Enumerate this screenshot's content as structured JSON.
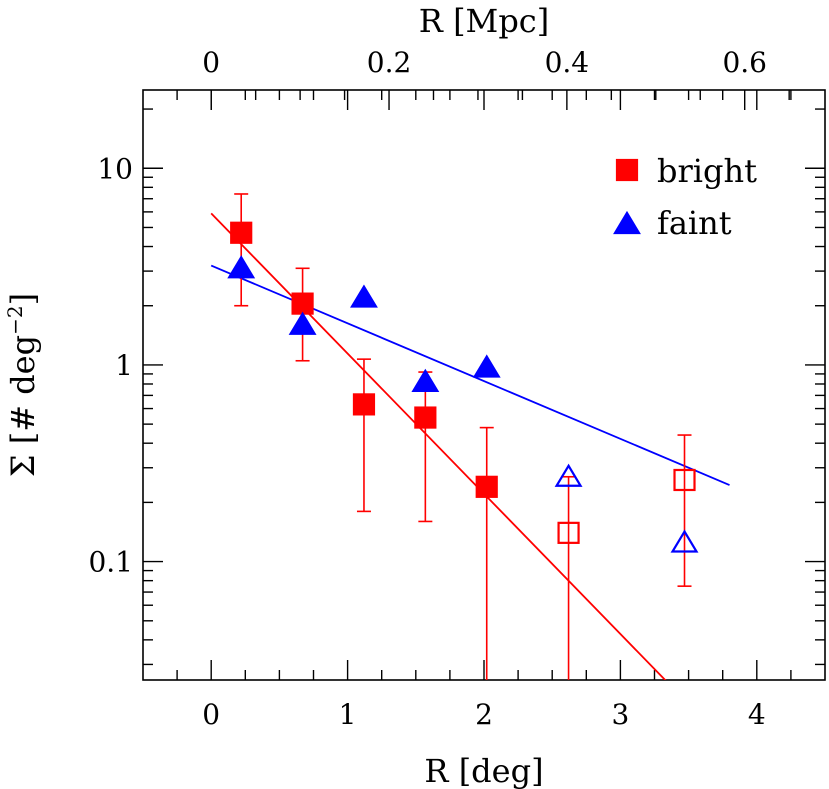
{
  "chart_data": {
    "type": "scatter",
    "xlabel": "R [deg]",
    "x2label": "R [Mpc]",
    "ylabel": "Σ [# deg",
    "ylabel_sup": "−2",
    "ylabel_close": "]",
    "xlim": [
      -0.5,
      4.5
    ],
    "ylim": [
      0.025,
      25
    ],
    "yscale": "log",
    "x2_scale_mpc_per_deg": 0.1534,
    "xticks": [
      0,
      1,
      2,
      3,
      4
    ],
    "xtick_labels": [
      "0",
      "1",
      "2",
      "3",
      "4"
    ],
    "x2ticks": [
      0,
      0.2,
      0.4,
      0.6
    ],
    "x2tick_labels": [
      "0",
      "0.2",
      "0.4",
      "0.6"
    ],
    "yticks": [
      0.1,
      1,
      10
    ],
    "ytick_labels": [
      "0.1",
      "1",
      "10"
    ],
    "legend": {
      "position": "top-right"
    },
    "series": [
      {
        "name": "bright",
        "marker": "square",
        "color": "#ff0000",
        "points": [
          {
            "x": 0.22,
            "y": 4.7,
            "ylo": 2.0,
            "yhi": 7.4,
            "filled": true
          },
          {
            "x": 0.67,
            "y": 2.05,
            "ylo": 1.05,
            "yhi": 3.1,
            "filled": true
          },
          {
            "x": 1.12,
            "y": 0.63,
            "ylo": 0.18,
            "yhi": 1.07,
            "filled": true
          },
          {
            "x": 1.57,
            "y": 0.54,
            "ylo": 0.16,
            "yhi": 0.92,
            "filled": true
          },
          {
            "x": 2.02,
            "y": 0.24,
            "ylo": 0.001,
            "yhi": 0.48,
            "filled": true
          },
          {
            "x": 2.62,
            "y": 0.14,
            "ylo": 0.001,
            "yhi": 0.27,
            "filled": false
          },
          {
            "x": 3.47,
            "y": 0.26,
            "ylo": 0.075,
            "yhi": 0.44,
            "filled": false
          }
        ],
        "fit": {
          "x": [
            0,
            3.6
          ],
          "y": [
            5.9,
            0.016
          ]
        }
      },
      {
        "name": "faint",
        "marker": "triangle",
        "color": "#0000ff",
        "points": [
          {
            "x": 0.22,
            "y": 3.1,
            "filled": true
          },
          {
            "x": 0.67,
            "y": 1.6,
            "filled": true
          },
          {
            "x": 1.12,
            "y": 2.2,
            "filled": true
          },
          {
            "x": 1.57,
            "y": 0.82,
            "filled": true
          },
          {
            "x": 2.02,
            "y": 0.97,
            "filled": true
          },
          {
            "x": 2.62,
            "y": 0.27,
            "filled": false
          },
          {
            "x": 3.47,
            "y": 0.125,
            "filled": false
          }
        ],
        "fit": {
          "x": [
            0,
            3.8
          ],
          "y": [
            3.2,
            0.245
          ]
        }
      }
    ]
  }
}
